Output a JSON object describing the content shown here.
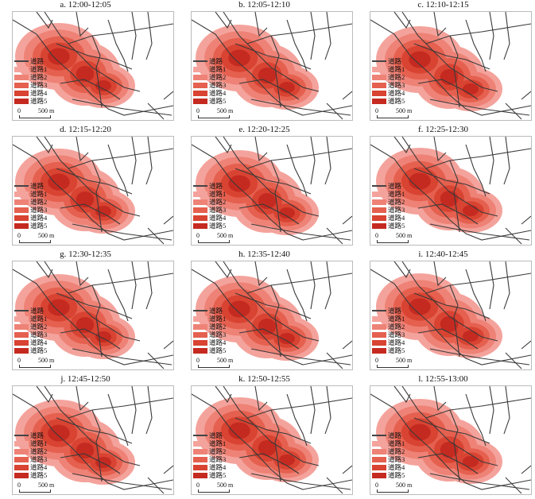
{
  "panels": [
    {
      "title": "a. 12:00-12:05"
    },
    {
      "title": "b. 12:05-12:10"
    },
    {
      "title": "c. 12:10-12:15"
    },
    {
      "title": "d. 12:15-12:20"
    },
    {
      "title": "e. 12:20-12:25"
    },
    {
      "title": "f. 12:25-12:30"
    },
    {
      "title": "g. 12:30-12:35"
    },
    {
      "title": "h. 12:35-12:40"
    },
    {
      "title": "i. 12:40-12:45"
    },
    {
      "title": "j. 12:45-12:50"
    },
    {
      "title": "k. 12:50-12:55"
    },
    {
      "title": "l. 12:55-13:00"
    }
  ],
  "legend": {
    "road": "道路",
    "levels": [
      "道路1",
      "道路2",
      "道路3",
      "道路4",
      "道路5"
    ]
  },
  "scale": {
    "zero": "0",
    "distance": "500 m"
  },
  "colors": {
    "road": "#3a3a3a",
    "levels": [
      "#f4a39c",
      "#ee8276",
      "#e5604f",
      "#d84332",
      "#c52a20"
    ]
  }
}
